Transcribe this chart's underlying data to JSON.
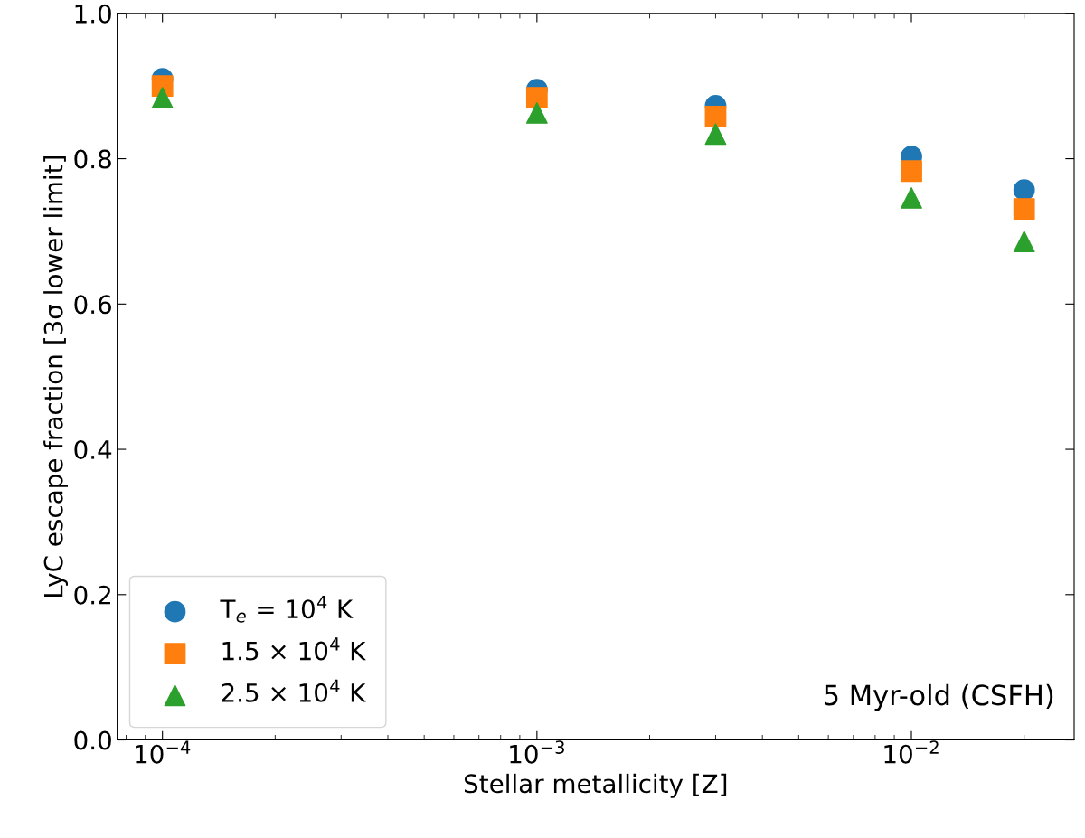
{
  "chart_data": {
    "type": "scatter",
    "xlabel": "Stellar metallicity [Z]",
    "ylabel": "LyC escape fraction [3σ lower limit]",
    "x": [
      0.0001,
      0.001,
      0.003,
      0.01,
      0.02
    ],
    "series": [
      {
        "name": "T$_{e}$ = 10$^{4}$ K",
        "color": "#1f77b4",
        "marker": "circle",
        "values": [
          0.91,
          0.895,
          0.873,
          0.803,
          0.757
        ]
      },
      {
        "name": "1.5 × 10$^{4}$ K",
        "color": "#ff7f0e",
        "marker": "square",
        "values": [
          0.9,
          0.884,
          0.858,
          0.783,
          0.731
        ]
      },
      {
        "name": "2.5 × 10$^{4}$ K",
        "color": "#2ca02c",
        "marker": "triangle",
        "values": [
          0.884,
          0.863,
          0.834,
          0.746,
          0.686
        ]
      }
    ],
    "log": "x",
    "xlim": [
      7.57e-05,
      0.0272
    ],
    "xticks": [
      {
        "value": 0.0001,
        "label": "10$^{−4}$"
      },
      {
        "value": 0.001,
        "label": "10$^{−3}$"
      },
      {
        "value": 0.01,
        "label": "10$^{−2}$"
      }
    ],
    "ylim": [
      0.0,
      1.0
    ],
    "yticks": [
      {
        "value": 0.0,
        "label": "0.0"
      },
      {
        "value": 0.2,
        "label": "0.2"
      },
      {
        "value": 0.4,
        "label": "0.4"
      },
      {
        "value": 0.6,
        "label": "0.6"
      },
      {
        "value": 0.8,
        "label": "0.8"
      },
      {
        "value": 1.0,
        "label": "1.0"
      }
    ],
    "grid": false,
    "legend": "bottom left",
    "annotations": [
      "5 Myr-old (CSFH)"
    ]
  }
}
